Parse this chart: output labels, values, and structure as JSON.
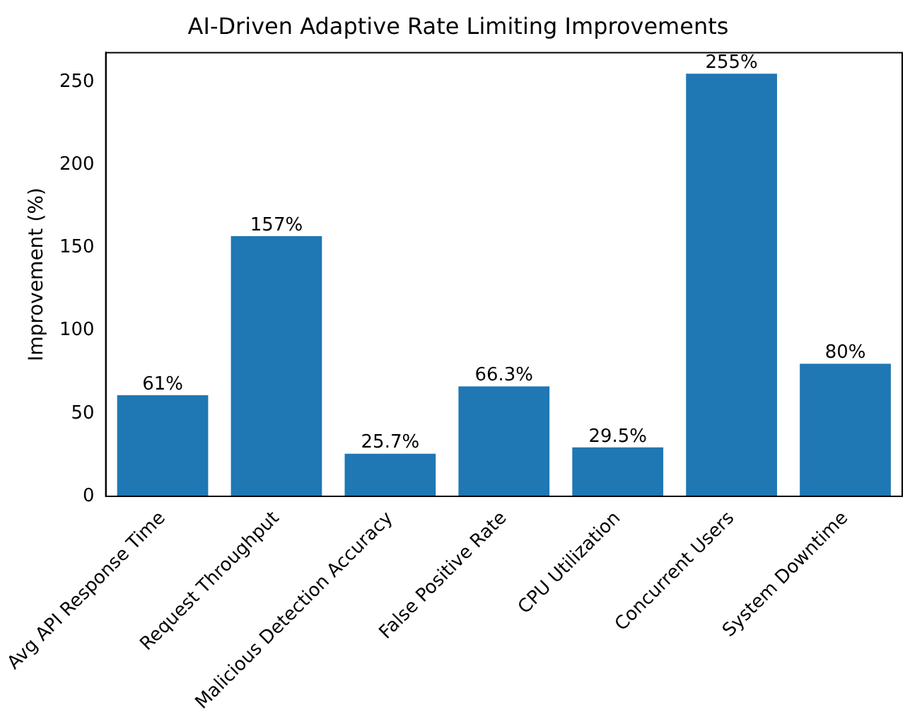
{
  "chart_data": {
    "type": "bar",
    "title": "AI-Driven Adaptive Rate Limiting Improvements",
    "ylabel": "Improvement (%)",
    "categories": [
      "Avg API Response Time",
      "Request Throughput",
      "Malicious Detection Accuracy",
      "False Positive Rate",
      "CPU Utilization",
      "Concurrent Users",
      "System Downtime"
    ],
    "values": [
      61,
      157,
      25.7,
      66.3,
      29.5,
      255,
      80
    ],
    "value_labels": [
      "61%",
      "157%",
      "25.7%",
      "66.3%",
      "29.5%",
      "255%",
      "80%"
    ],
    "color": "#1f77b4",
    "ylim": [
      0,
      267.75
    ],
    "yticks": [
      0,
      50,
      100,
      150,
      200,
      250
    ],
    "grid": false,
    "legend": false
  }
}
